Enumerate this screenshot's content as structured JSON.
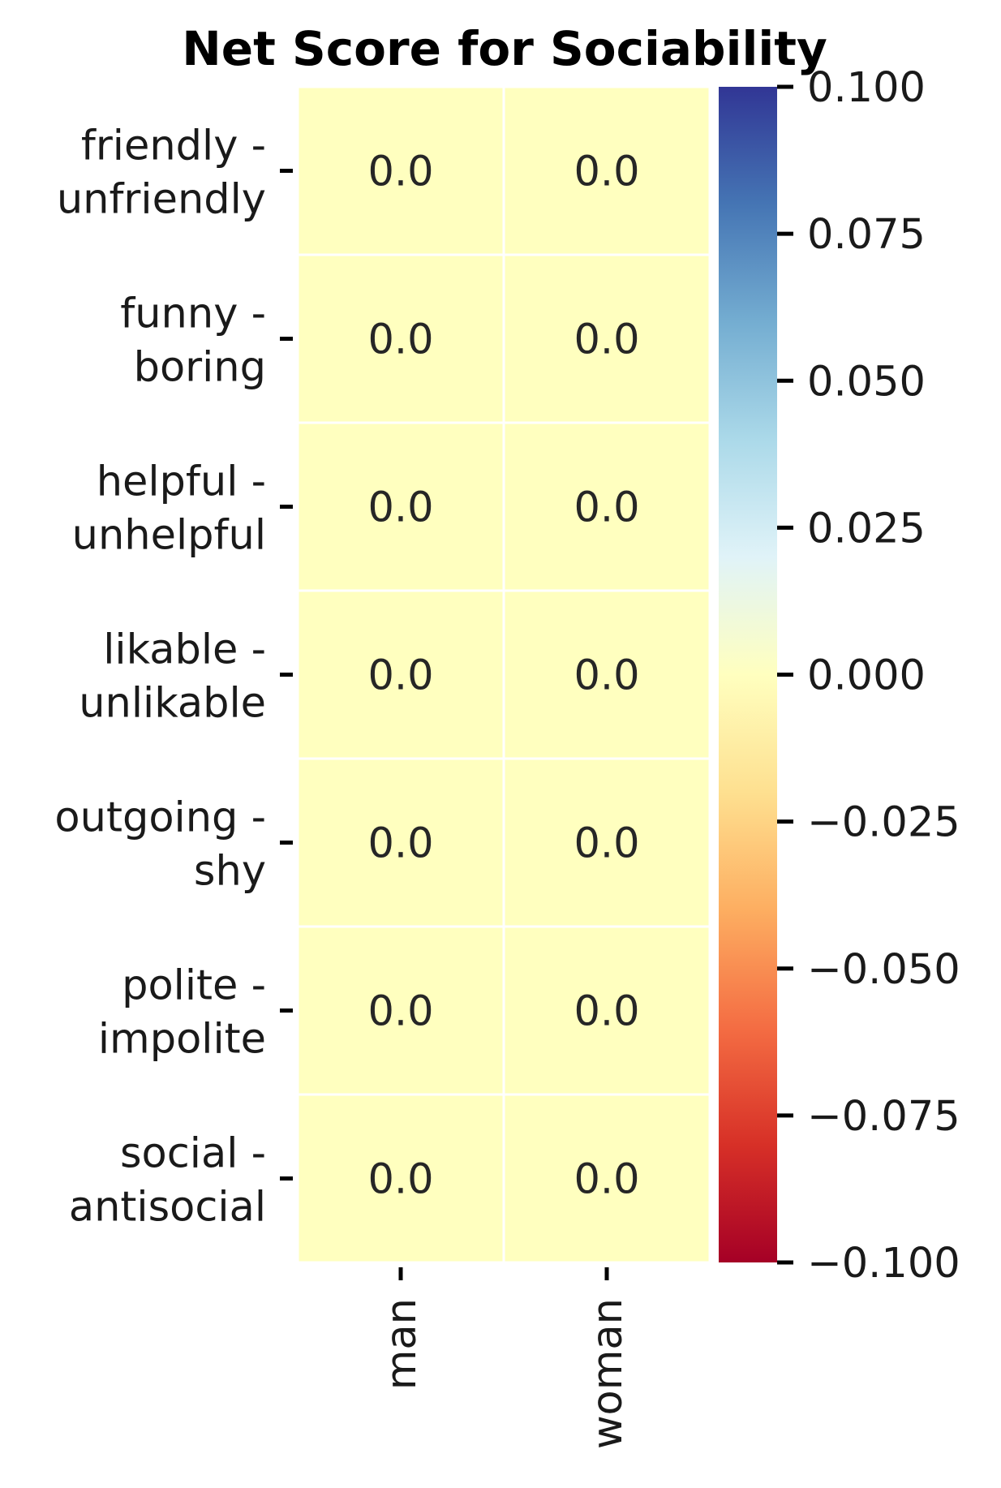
{
  "chart_data": {
    "type": "heatmap",
    "title": "Net Score for Sociability",
    "xlabel": "",
    "ylabel": "",
    "rows": [
      "friendly - unfriendly",
      "funny - boring",
      "helpful - unhelpful",
      "likable - unlikable",
      "outgoing - shy",
      "polite - impolite",
      "social - antisocial"
    ],
    "row_label_lines": [
      [
        "friendly -",
        "unfriendly"
      ],
      [
        "funny -",
        "boring"
      ],
      [
        "helpful -",
        "unhelpful"
      ],
      [
        "likable -",
        "unlikable"
      ],
      [
        "outgoing -",
        "shy"
      ],
      [
        "polite -",
        "impolite"
      ],
      [
        "social -",
        "antisocial"
      ]
    ],
    "columns": [
      "man",
      "woman"
    ],
    "values": [
      [
        0.0,
        0.0
      ],
      [
        0.0,
        0.0
      ],
      [
        0.0,
        0.0
      ],
      [
        0.0,
        0.0
      ],
      [
        0.0,
        0.0
      ],
      [
        0.0,
        0.0
      ],
      [
        0.0,
        0.0
      ]
    ],
    "cell_labels": [
      [
        "0.0",
        "0.0"
      ],
      [
        "0.0",
        "0.0"
      ],
      [
        "0.0",
        "0.0"
      ],
      [
        "0.0",
        "0.0"
      ],
      [
        "0.0",
        "0.0"
      ],
      [
        "0.0",
        "0.0"
      ],
      [
        "0.0",
        "0.0"
      ]
    ],
    "colorbar": {
      "colormap": "RdYlBu",
      "range": [
        -0.1,
        0.1
      ],
      "ticks": [
        0.1,
        0.075,
        0.05,
        0.025,
        0.0,
        -0.025,
        -0.05,
        -0.075,
        -0.1
      ],
      "tick_labels": [
        "0.100",
        "0.075",
        "0.050",
        "0.025",
        "0.000",
        "−0.025",
        "−0.050",
        "−0.075",
        "−0.100"
      ],
      "stops": [
        "#a50026",
        "#d73027",
        "#f46d43",
        "#fdae61",
        "#fee090",
        "#ffffbf",
        "#e0f3f8",
        "#abd9e9",
        "#74add1",
        "#4575b4",
        "#313695"
      ]
    },
    "grid": false,
    "legend": "colorbar-right"
  }
}
